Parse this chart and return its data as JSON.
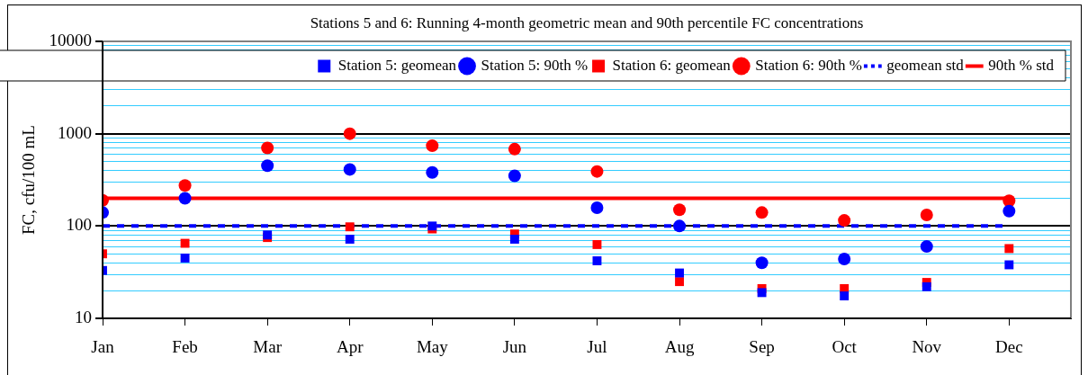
{
  "chart_data": {
    "type": "scatter",
    "title": "Stations 5 and 6: Running 4-month geometric mean and 90th percentile FC concentrations",
    "ylabel": "FC, cfu/100 mL",
    "categories": [
      "Jan",
      "Feb",
      "Mar",
      "Apr",
      "May",
      "Jun",
      "Jul",
      "Aug",
      "Sep",
      "Oct",
      "Nov",
      "Dec"
    ],
    "log": "y",
    "ylim": [
      10,
      10000
    ],
    "yticks": [
      10,
      {
        "value": 20,
        "label": null
      },
      {
        "value": 30,
        "label": null
      },
      {
        "value": 40,
        "label": null
      },
      {
        "value": 50,
        "label": null
      },
      {
        "value": 60,
        "label": null
      },
      {
        "value": 70,
        "label": null
      },
      {
        "value": 80,
        "label": null
      },
      {
        "value": 90,
        "label": null
      },
      100,
      {
        "value": 200,
        "label": null
      },
      {
        "value": 300,
        "label": null
      },
      {
        "value": 400,
        "label": null
      },
      {
        "value": 500,
        "label": null
      },
      {
        "value": 600,
        "label": null
      },
      {
        "value": 700,
        "label": null
      },
      {
        "value": 800,
        "label": null
      },
      {
        "value": 900,
        "label": null
      },
      1000,
      {
        "value": 2000,
        "label": null
      },
      {
        "value": 3000,
        "label": null
      },
      {
        "value": 4000,
        "label": null
      },
      {
        "value": 5000,
        "label": null
      },
      {
        "value": 6000,
        "label": null
      },
      {
        "value": 7000,
        "label": null
      },
      {
        "value": 8000,
        "label": null
      },
      {
        "value": 9000,
        "label": null
      },
      10000
    ],
    "grid": "y",
    "legend": "top right",
    "series": [
      {
        "name": "Station 5: geomean",
        "marker": "square",
        "color": "#0000ff",
        "values": [
          33,
          45,
          80,
          72,
          100,
          72,
          42,
          31,
          19,
          17.5,
          22,
          38
        ]
      },
      {
        "name": "Station 5: 90th %",
        "marker": "circle",
        "color": "#0000ff",
        "values": [
          140,
          200,
          450,
          410,
          380,
          350,
          158,
          100,
          40,
          44,
          60,
          145
        ]
      },
      {
        "name": "Station 6: geomean",
        "marker": "square",
        "color": "#ff0000",
        "values": [
          50,
          65,
          75,
          98,
          93,
          82,
          63,
          25,
          21,
          21,
          24.5,
          57
        ]
      },
      {
        "name": "Station 6: 90th %",
        "marker": "circle",
        "color": "#ff0000",
        "values": [
          190,
          275,
          700,
          1000,
          740,
          680,
          390,
          150,
          140,
          115,
          132,
          188
        ]
      }
    ],
    "ref_lines": [
      {
        "axis": "y",
        "value": 100,
        "label": "geomean std",
        "color": "#0000ff",
        "line_style": "dashed"
      },
      {
        "axis": "y",
        "value": 200,
        "label": "90th % std",
        "color": "#ff0000",
        "line_style": "solid"
      }
    ]
  }
}
